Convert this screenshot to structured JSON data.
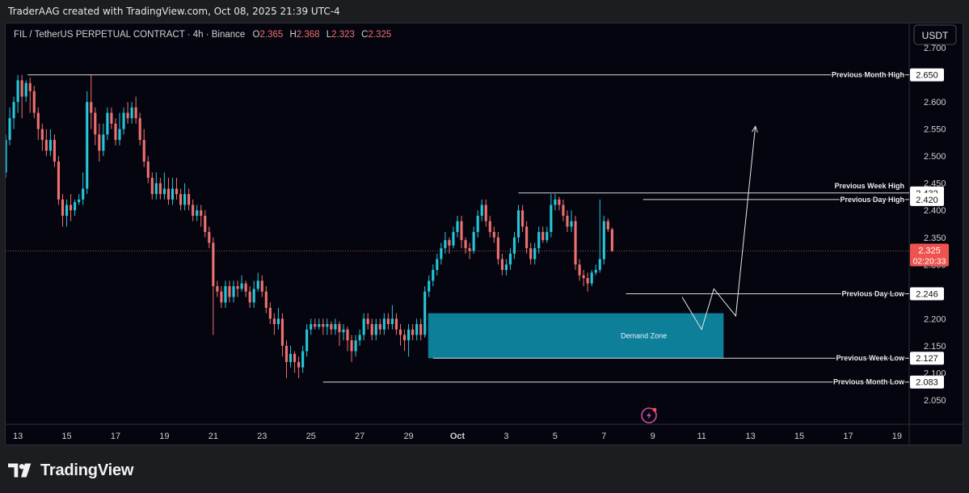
{
  "header": {
    "credit": "TraderAAG created with TradingView.com, Oct 08, 2025 21:39 UTC-4"
  },
  "footer": {
    "brand": "TradingView"
  },
  "colors": {
    "up": "#26c6da",
    "down": "#ef7070",
    "zone": "#0e8aa5",
    "line": "#d9d9d9",
    "bg": "#05050f"
  },
  "chart_data": {
    "type": "candlestick",
    "symbol_line": {
      "title": "FIL / TetherUS PERPETUAL CONTRACT · 4h · Binance",
      "o_label": "O",
      "o": "2.365",
      "h_label": "H",
      "h": "2.368",
      "l_label": "L",
      "l": "2.323",
      "c_label": "C",
      "c": "2.325"
    },
    "currency": "USDT",
    "ylim": [
      2.005,
      2.745
    ],
    "y_ticks": [
      "2.050",
      "2.100",
      "2.150",
      "2.200",
      "2.250",
      "2.300",
      "2.350",
      "2.400",
      "2.450",
      "2.500",
      "2.550",
      "2.600",
      "2.650",
      "2.700"
    ],
    "x_ticks": [
      "13",
      "15",
      "17",
      "19",
      "21",
      "23",
      "25",
      "27",
      "29",
      "Oct",
      "3",
      "5",
      "7",
      "9",
      "11",
      "13",
      "15",
      "17",
      "19"
    ],
    "x_tick_days": [
      13,
      15,
      17,
      19,
      21,
      23,
      25,
      27,
      29,
      31,
      33,
      35,
      37,
      39,
      41,
      43,
      45,
      47,
      49
    ],
    "x_range_days": [
      12.5,
      49.5
    ],
    "last_price": {
      "value": "2.325",
      "countdown": "02:20:33"
    },
    "levels": [
      {
        "name": "Previous Month High",
        "value": 2.65,
        "label": "2.650",
        "from_day": 13.4
      },
      {
        "name": "Previous Week High",
        "value": 2.432,
        "label": "2.432",
        "from_day": 33.5
      },
      {
        "name": "Previous Day High",
        "value": 2.42,
        "label": "2.420",
        "from_day": 38.6
      },
      {
        "name": "Previous Day Low",
        "value": 2.246,
        "label": "2.246",
        "from_day": 37.9
      },
      {
        "name": "Previous Week Low",
        "value": 2.127,
        "label": "2.127",
        "from_day": 30.0
      },
      {
        "name": "Previous Month Low",
        "value": 2.083,
        "label": "2.083",
        "from_day": 25.5
      }
    ],
    "zone": {
      "label": "Demand Zone",
      "top": 2.21,
      "bottom": 2.127,
      "from_day": 29.8,
      "to_day": 41.9
    },
    "projection": [
      {
        "day": 40.2,
        "value": 2.24
      },
      {
        "day": 41.0,
        "value": 2.18
      },
      {
        "day": 41.5,
        "value": 2.255
      },
      {
        "day": 42.4,
        "value": 2.205
      },
      {
        "day": 43.2,
        "value": 2.555
      }
    ],
    "candles": [
      {
        "o": 2.47,
        "c": 2.53,
        "h": 2.54,
        "l": 2.46
      },
      {
        "o": 2.53,
        "c": 2.57,
        "h": 2.59,
        "l": 2.52
      },
      {
        "o": 2.57,
        "c": 2.6,
        "h": 2.61,
        "l": 2.55
      },
      {
        "o": 2.6,
        "c": 2.64,
        "h": 2.65,
        "l": 2.58
      },
      {
        "o": 2.64,
        "c": 2.61,
        "h": 2.65,
        "l": 2.57
      },
      {
        "o": 2.61,
        "c": 2.635,
        "h": 2.64,
        "l": 2.6
      },
      {
        "o": 2.635,
        "c": 2.62,
        "h": 2.645,
        "l": 2.58
      },
      {
        "o": 2.62,
        "c": 2.58,
        "h": 2.63,
        "l": 2.57
      },
      {
        "o": 2.58,
        "c": 2.55,
        "h": 2.59,
        "l": 2.53
      },
      {
        "o": 2.55,
        "c": 2.53,
        "h": 2.56,
        "l": 2.51
      },
      {
        "o": 2.53,
        "c": 2.51,
        "h": 2.55,
        "l": 2.5
      },
      {
        "o": 2.51,
        "c": 2.53,
        "h": 2.55,
        "l": 2.5
      },
      {
        "o": 2.53,
        "c": 2.49,
        "h": 2.54,
        "l": 2.48
      },
      {
        "o": 2.49,
        "c": 2.42,
        "h": 2.5,
        "l": 2.41
      },
      {
        "o": 2.42,
        "c": 2.39,
        "h": 2.43,
        "l": 2.37
      },
      {
        "o": 2.39,
        "c": 2.41,
        "h": 2.42,
        "l": 2.37
      },
      {
        "o": 2.41,
        "c": 2.4,
        "h": 2.43,
        "l": 2.38
      },
      {
        "o": 2.4,
        "c": 2.415,
        "h": 2.42,
        "l": 2.39
      },
      {
        "o": 2.415,
        "c": 2.42,
        "h": 2.43,
        "l": 2.41
      },
      {
        "o": 2.42,
        "c": 2.44,
        "h": 2.47,
        "l": 2.41
      },
      {
        "o": 2.44,
        "c": 2.6,
        "h": 2.62,
        "l": 2.43
      },
      {
        "o": 2.6,
        "c": 2.58,
        "h": 2.65,
        "l": 2.55
      },
      {
        "o": 2.58,
        "c": 2.54,
        "h": 2.59,
        "l": 2.52
      },
      {
        "o": 2.54,
        "c": 2.51,
        "h": 2.56,
        "l": 2.49
      },
      {
        "o": 2.51,
        "c": 2.54,
        "h": 2.56,
        "l": 2.5
      },
      {
        "o": 2.54,
        "c": 2.58,
        "h": 2.59,
        "l": 2.53
      },
      {
        "o": 2.58,
        "c": 2.56,
        "h": 2.59,
        "l": 2.55
      },
      {
        "o": 2.56,
        "c": 2.53,
        "h": 2.57,
        "l": 2.52
      },
      {
        "o": 2.53,
        "c": 2.55,
        "h": 2.58,
        "l": 2.52
      },
      {
        "o": 2.55,
        "c": 2.58,
        "h": 2.59,
        "l": 2.54
      },
      {
        "o": 2.58,
        "c": 2.57,
        "h": 2.6,
        "l": 2.56
      },
      {
        "o": 2.57,
        "c": 2.59,
        "h": 2.6,
        "l": 2.56
      },
      {
        "o": 2.59,
        "c": 2.57,
        "h": 2.61,
        "l": 2.56
      },
      {
        "o": 2.57,
        "c": 2.53,
        "h": 2.58,
        "l": 2.52
      },
      {
        "o": 2.53,
        "c": 2.49,
        "h": 2.55,
        "l": 2.48
      },
      {
        "o": 2.49,
        "c": 2.46,
        "h": 2.5,
        "l": 2.45
      },
      {
        "o": 2.46,
        "c": 2.43,
        "h": 2.47,
        "l": 2.42
      },
      {
        "o": 2.43,
        "c": 2.45,
        "h": 2.47,
        "l": 2.42
      },
      {
        "o": 2.45,
        "c": 2.43,
        "h": 2.46,
        "l": 2.42
      },
      {
        "o": 2.43,
        "c": 2.44,
        "h": 2.47,
        "l": 2.42
      },
      {
        "o": 2.44,
        "c": 2.42,
        "h": 2.46,
        "l": 2.41
      },
      {
        "o": 2.42,
        "c": 2.44,
        "h": 2.46,
        "l": 2.41
      },
      {
        "o": 2.44,
        "c": 2.43,
        "h": 2.46,
        "l": 2.42
      },
      {
        "o": 2.43,
        "c": 2.41,
        "h": 2.44,
        "l": 2.4
      },
      {
        "o": 2.41,
        "c": 2.43,
        "h": 2.45,
        "l": 2.4
      },
      {
        "o": 2.43,
        "c": 2.41,
        "h": 2.44,
        "l": 2.4
      },
      {
        "o": 2.41,
        "c": 2.39,
        "h": 2.42,
        "l": 2.38
      },
      {
        "o": 2.39,
        "c": 2.4,
        "h": 2.41,
        "l": 2.38
      },
      {
        "o": 2.4,
        "c": 2.39,
        "h": 2.41,
        "l": 2.37
      },
      {
        "o": 2.39,
        "c": 2.36,
        "h": 2.4,
        "l": 2.35
      },
      {
        "o": 2.36,
        "c": 2.34,
        "h": 2.37,
        "l": 2.33
      },
      {
        "o": 2.34,
        "c": 2.26,
        "h": 2.35,
        "l": 2.17
      },
      {
        "o": 2.26,
        "c": 2.25,
        "h": 2.27,
        "l": 2.24
      },
      {
        "o": 2.25,
        "c": 2.23,
        "h": 2.26,
        "l": 2.22
      },
      {
        "o": 2.23,
        "c": 2.26,
        "h": 2.27,
        "l": 2.22
      },
      {
        "o": 2.26,
        "c": 2.24,
        "h": 2.27,
        "l": 2.23
      },
      {
        "o": 2.24,
        "c": 2.26,
        "h": 2.27,
        "l": 2.23
      },
      {
        "o": 2.26,
        "c": 2.255,
        "h": 2.27,
        "l": 2.24
      },
      {
        "o": 2.255,
        "c": 2.265,
        "h": 2.28,
        "l": 2.25
      },
      {
        "o": 2.265,
        "c": 2.25,
        "h": 2.27,
        "l": 2.24
      },
      {
        "o": 2.25,
        "c": 2.23,
        "h": 2.26,
        "l": 2.22
      },
      {
        "o": 2.23,
        "c": 2.255,
        "h": 2.27,
        "l": 2.22
      },
      {
        "o": 2.255,
        "c": 2.27,
        "h": 2.285,
        "l": 2.25
      },
      {
        "o": 2.27,
        "c": 2.25,
        "h": 2.28,
        "l": 2.24
      },
      {
        "o": 2.25,
        "c": 2.22,
        "h": 2.26,
        "l": 2.21
      },
      {
        "o": 2.22,
        "c": 2.2,
        "h": 2.23,
        "l": 2.19
      },
      {
        "o": 2.2,
        "c": 2.19,
        "h": 2.21,
        "l": 2.17
      },
      {
        "o": 2.19,
        "c": 2.2,
        "h": 2.22,
        "l": 2.18
      },
      {
        "o": 2.2,
        "c": 2.15,
        "h": 2.21,
        "l": 2.13
      },
      {
        "o": 2.15,
        "c": 2.12,
        "h": 2.16,
        "l": 2.09
      },
      {
        "o": 2.12,
        "c": 2.135,
        "h": 2.15,
        "l": 2.11
      },
      {
        "o": 2.135,
        "c": 2.12,
        "h": 2.14,
        "l": 2.1
      },
      {
        "o": 2.12,
        "c": 2.11,
        "h": 2.13,
        "l": 2.09
      },
      {
        "o": 2.11,
        "c": 2.14,
        "h": 2.15,
        "l": 2.1
      },
      {
        "o": 2.14,
        "c": 2.18,
        "h": 2.19,
        "l": 2.13
      },
      {
        "o": 2.18,
        "c": 2.19,
        "h": 2.2,
        "l": 2.17
      },
      {
        "o": 2.19,
        "c": 2.185,
        "h": 2.2,
        "l": 2.18
      },
      {
        "o": 2.185,
        "c": 2.19,
        "h": 2.2,
        "l": 2.18
      },
      {
        "o": 2.19,
        "c": 2.185,
        "h": 2.2,
        "l": 2.17
      },
      {
        "o": 2.185,
        "c": 2.19,
        "h": 2.2,
        "l": 2.17
      },
      {
        "o": 2.19,
        "c": 2.18,
        "h": 2.195,
        "l": 2.17
      },
      {
        "o": 2.18,
        "c": 2.19,
        "h": 2.2,
        "l": 2.17
      },
      {
        "o": 2.19,
        "c": 2.175,
        "h": 2.195,
        "l": 2.15
      },
      {
        "o": 2.175,
        "c": 2.18,
        "h": 2.19,
        "l": 2.16
      },
      {
        "o": 2.18,
        "c": 2.16,
        "h": 2.185,
        "l": 2.14
      },
      {
        "o": 2.16,
        "c": 2.14,
        "h": 2.17,
        "l": 2.12
      },
      {
        "o": 2.14,
        "c": 2.16,
        "h": 2.17,
        "l": 2.13
      },
      {
        "o": 2.16,
        "c": 2.17,
        "h": 2.18,
        "l": 2.15
      },
      {
        "o": 2.17,
        "c": 2.2,
        "h": 2.21,
        "l": 2.16
      },
      {
        "o": 2.2,
        "c": 2.19,
        "h": 2.21,
        "l": 2.18
      },
      {
        "o": 2.19,
        "c": 2.17,
        "h": 2.2,
        "l": 2.16
      },
      {
        "o": 2.17,
        "c": 2.19,
        "h": 2.2,
        "l": 2.16
      },
      {
        "o": 2.19,
        "c": 2.18,
        "h": 2.2,
        "l": 2.17
      },
      {
        "o": 2.18,
        "c": 2.2,
        "h": 2.21,
        "l": 2.17
      },
      {
        "o": 2.2,
        "c": 2.19,
        "h": 2.21,
        "l": 2.18
      },
      {
        "o": 2.19,
        "c": 2.2,
        "h": 2.225,
        "l": 2.18
      },
      {
        "o": 2.2,
        "c": 2.18,
        "h": 2.21,
        "l": 2.17
      },
      {
        "o": 2.18,
        "c": 2.17,
        "h": 2.19,
        "l": 2.15
      },
      {
        "o": 2.17,
        "c": 2.16,
        "h": 2.18,
        "l": 2.14
      },
      {
        "o": 2.16,
        "c": 2.18,
        "h": 2.19,
        "l": 2.13
      },
      {
        "o": 2.18,
        "c": 2.17,
        "h": 2.19,
        "l": 2.16
      },
      {
        "o": 2.17,
        "c": 2.19,
        "h": 2.2,
        "l": 2.16
      },
      {
        "o": 2.19,
        "c": 2.17,
        "h": 2.2,
        "l": 2.16
      },
      {
        "o": 2.17,
        "c": 2.25,
        "h": 2.26,
        "l": 2.165
      },
      {
        "o": 2.25,
        "c": 2.27,
        "h": 2.28,
        "l": 2.24
      },
      {
        "o": 2.27,
        "c": 2.29,
        "h": 2.3,
        "l": 2.26
      },
      {
        "o": 2.29,
        "c": 2.31,
        "h": 2.32,
        "l": 2.28
      },
      {
        "o": 2.31,
        "c": 2.33,
        "h": 2.34,
        "l": 2.3
      },
      {
        "o": 2.33,
        "c": 2.345,
        "h": 2.36,
        "l": 2.32
      },
      {
        "o": 2.345,
        "c": 2.335,
        "h": 2.35,
        "l": 2.32
      },
      {
        "o": 2.335,
        "c": 2.36,
        "h": 2.37,
        "l": 2.33
      },
      {
        "o": 2.36,
        "c": 2.38,
        "h": 2.39,
        "l": 2.35
      },
      {
        "o": 2.38,
        "c": 2.345,
        "h": 2.39,
        "l": 2.33
      },
      {
        "o": 2.345,
        "c": 2.33,
        "h": 2.35,
        "l": 2.32
      },
      {
        "o": 2.33,
        "c": 2.325,
        "h": 2.34,
        "l": 2.31
      },
      {
        "o": 2.325,
        "c": 2.36,
        "h": 2.37,
        "l": 2.32
      },
      {
        "o": 2.36,
        "c": 2.39,
        "h": 2.4,
        "l": 2.35
      },
      {
        "o": 2.39,
        "c": 2.41,
        "h": 2.42,
        "l": 2.38
      },
      {
        "o": 2.41,
        "c": 2.38,
        "h": 2.42,
        "l": 2.37
      },
      {
        "o": 2.38,
        "c": 2.36,
        "h": 2.39,
        "l": 2.35
      },
      {
        "o": 2.36,
        "c": 2.35,
        "h": 2.37,
        "l": 2.34
      },
      {
        "o": 2.35,
        "c": 2.31,
        "h": 2.36,
        "l": 2.3
      },
      {
        "o": 2.31,
        "c": 2.29,
        "h": 2.32,
        "l": 2.28
      },
      {
        "o": 2.29,
        "c": 2.3,
        "h": 2.31,
        "l": 2.28
      },
      {
        "o": 2.3,
        "c": 2.32,
        "h": 2.33,
        "l": 2.29
      },
      {
        "o": 2.32,
        "c": 2.35,
        "h": 2.36,
        "l": 2.31
      },
      {
        "o": 2.35,
        "c": 2.4,
        "h": 2.41,
        "l": 2.34
      },
      {
        "o": 2.4,
        "c": 2.37,
        "h": 2.41,
        "l": 2.36
      },
      {
        "o": 2.37,
        "c": 2.33,
        "h": 2.38,
        "l": 2.32
      },
      {
        "o": 2.33,
        "c": 2.31,
        "h": 2.34,
        "l": 2.3
      },
      {
        "o": 2.31,
        "c": 2.33,
        "h": 2.34,
        "l": 2.3
      },
      {
        "o": 2.33,
        "c": 2.36,
        "h": 2.37,
        "l": 2.32
      },
      {
        "o": 2.36,
        "c": 2.345,
        "h": 2.37,
        "l": 2.34
      },
      {
        "o": 2.345,
        "c": 2.36,
        "h": 2.37,
        "l": 2.34
      },
      {
        "o": 2.36,
        "c": 2.41,
        "h": 2.43,
        "l": 2.35
      },
      {
        "o": 2.41,
        "c": 2.42,
        "h": 2.43,
        "l": 2.4
      },
      {
        "o": 2.42,
        "c": 2.41,
        "h": 2.425,
        "l": 2.4
      },
      {
        "o": 2.41,
        "c": 2.39,
        "h": 2.42,
        "l": 2.38
      },
      {
        "o": 2.39,
        "c": 2.37,
        "h": 2.4,
        "l": 2.36
      },
      {
        "o": 2.37,
        "c": 2.38,
        "h": 2.4,
        "l": 2.36
      },
      {
        "o": 2.38,
        "c": 2.3,
        "h": 2.39,
        "l": 2.29
      },
      {
        "o": 2.3,
        "c": 2.28,
        "h": 2.31,
        "l": 2.27
      },
      {
        "o": 2.28,
        "c": 2.275,
        "h": 2.29,
        "l": 2.26
      },
      {
        "o": 2.275,
        "c": 2.265,
        "h": 2.285,
        "l": 2.25
      },
      {
        "o": 2.265,
        "c": 2.285,
        "h": 2.29,
        "l": 2.26
      },
      {
        "o": 2.285,
        "c": 2.29,
        "h": 2.3,
        "l": 2.28
      },
      {
        "o": 2.29,
        "c": 2.31,
        "h": 2.42,
        "l": 2.285
      },
      {
        "o": 2.31,
        "c": 2.38,
        "h": 2.39,
        "l": 2.3
      },
      {
        "o": 2.38,
        "c": 2.365,
        "h": 2.385,
        "l": 2.36
      },
      {
        "o": 2.365,
        "c": 2.325,
        "h": 2.368,
        "l": 2.323
      }
    ]
  }
}
